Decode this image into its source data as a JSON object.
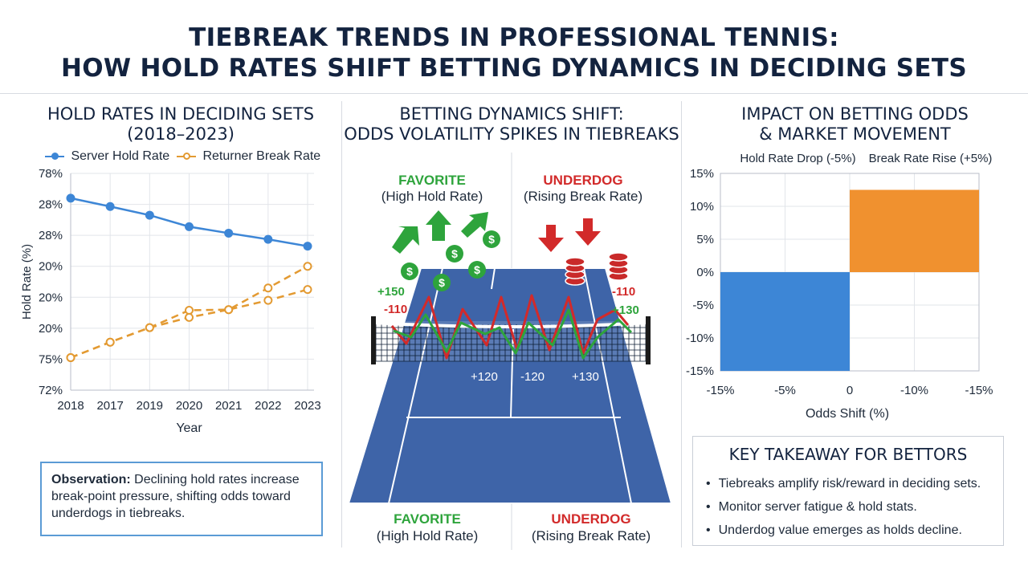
{
  "header": {
    "title_line1": "TIEBREAK TRENDS IN PROFESSIONAL TENNIS:",
    "title_line2": "HOW HOLD RATES SHIFT BETTING DYNAMICS IN DECIDING SETS"
  },
  "left_panel": {
    "title_line1": "HOLD RATES IN DECIDING SETS",
    "title_line2": "(2018–2023)",
    "observation_label": "Observation:",
    "observation_text": "Declining hold rates increase break-point pressure, shifting odds toward underdogs in tiebreaks."
  },
  "middle_panel": {
    "title_line1": "BETTING DYNAMICS SHIFT:",
    "title_line2": "ODDS VOLATILITY SPIKES IN TIEBREAKS",
    "top_left_label": "FAVORITE",
    "top_left_sub": "(High Hold Rate)",
    "top_right_label": "UNDERDOG",
    "top_right_sub": "(Rising Break Rate)",
    "bottom_left_label": "FAVORITE",
    "bottom_left_sub": "(High Hold Rate)",
    "bottom_right_label": "UNDERDOG",
    "bottom_right_sub": "(Rising Break Rate)",
    "odds_labels": [
      "+150",
      "-110",
      "-110",
      "+130",
      "+120",
      "-120",
      "+130"
    ],
    "colors": {
      "favorite": "#2ea43c",
      "underdog": "#d22a2a",
      "court": "#3e64a8"
    }
  },
  "right_panel": {
    "title_line1": "IMPACT ON BETTING ODDS",
    "title_line2": "& MARKET MOVEMENT"
  },
  "takeaway": {
    "title": "KEY TAKEAWAY FOR BETTORS",
    "items": [
      "Tiebreaks amplify risk/reward in deciding sets.",
      "Monitor server fatigue & hold stats.",
      "Underdog value emerges as holds decline."
    ]
  },
  "chart_data": [
    {
      "type": "line",
      "title": "HOLD RATES IN DECIDING SETS (2018–2023)",
      "xlabel": "Year",
      "ylabel": "Hold Rate (%)",
      "categories": [
        "2018",
        "2017",
        "2019",
        "2020",
        "2021",
        "2022",
        "2023"
      ],
      "y_tick_labels": [
        "78%",
        "28%",
        "28%",
        "20%",
        "20%",
        "20%",
        "75%",
        "72%"
      ],
      "y_tick_positions": [
        7,
        6,
        5,
        4,
        3,
        2,
        1,
        0
      ],
      "ylim": [
        0,
        7
      ],
      "grid": true,
      "legend": "top",
      "series": [
        {
          "name": "Server Hold Rate",
          "color": "#3d86d6",
          "style": "solid",
          "values": [
            6.2,
            5.93,
            5.65,
            5.28,
            5.07,
            4.87,
            4.65
          ]
        },
        {
          "name": "Returner Break Rate",
          "color": "#e39a32",
          "style": "dashed",
          "values": [
            1.05,
            1.55,
            2.02,
            2.58,
            2.6,
            2.9,
            3.25
          ]
        },
        {
          "name": "",
          "color": "#e39a32",
          "style": "dashed",
          "values": [
            1.05,
            1.55,
            2.02,
            2.35,
            2.6,
            3.3,
            4.0
          ]
        }
      ]
    },
    {
      "type": "bar",
      "title": "IMPACT ON BETTING ODDS & MARKET MOVEMENT",
      "xlabel": "Odds Shift (%)",
      "ylabel": "",
      "x_tick_labels": [
        "-15%",
        "-5%",
        "0",
        "-10%",
        "-15%"
      ],
      "y_tick_labels": [
        "15%",
        "10%",
        "5%",
        "0%",
        "-5%",
        "-10%",
        "-15%"
      ],
      "ylim": [
        -15,
        15
      ],
      "grid": true,
      "series": [
        {
          "name": "Hold Rate Drop (-5%)",
          "color": "#3d86d6",
          "value": -15
        },
        {
          "name": "Break Rate Rise (+5%)",
          "color": "#f0912f",
          "value": 12.5
        }
      ]
    }
  ]
}
